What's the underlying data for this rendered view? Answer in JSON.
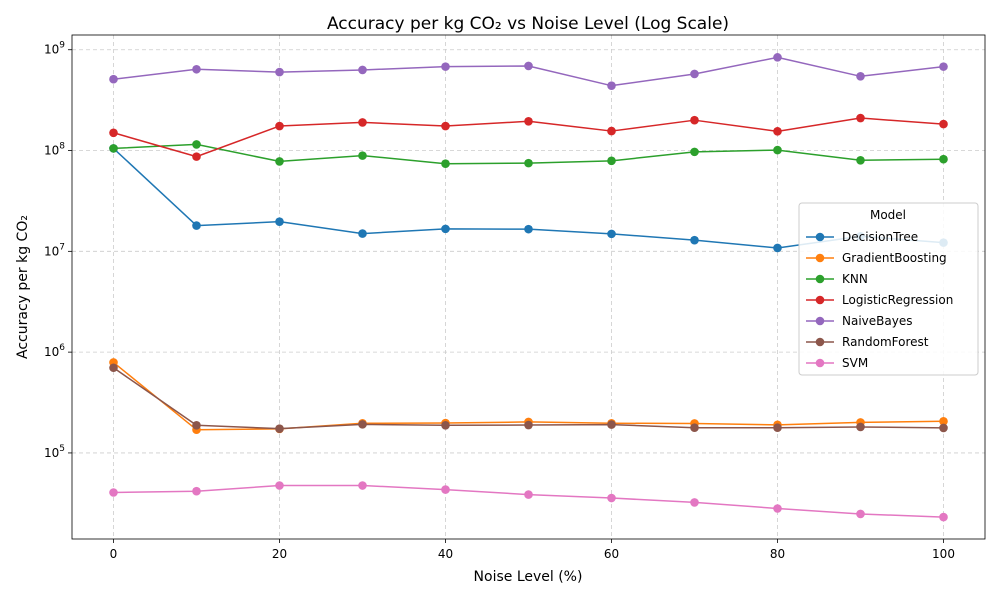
{
  "chart_data": {
    "type": "line",
    "title": "Accuracy per kg CO₂ vs Noise Level (Log Scale)",
    "xlabel": "Noise Level (%)",
    "ylabel": "Accuracy per kg CO₂",
    "x": [
      0,
      10,
      20,
      30,
      40,
      50,
      60,
      70,
      80,
      90,
      100
    ],
    "x_ticks": [
      0,
      20,
      40,
      60,
      80,
      100
    ],
    "xlim": [
      -5,
      105
    ],
    "yscale": "log",
    "ylim": [
      14000,
      1400000000
    ],
    "y_ticks": [
      {
        "value": 100000,
        "base": "10",
        "exp": "5"
      },
      {
        "value": 1000000,
        "base": "10",
        "exp": "6"
      },
      {
        "value": 10000000,
        "base": "10",
        "exp": "7"
      },
      {
        "value": 100000000,
        "base": "10",
        "exp": "8"
      },
      {
        "value": 1000000000,
        "base": "10",
        "exp": "9"
      }
    ],
    "grid": true,
    "legend": {
      "title": "Model",
      "placement": "center-right"
    },
    "series": [
      {
        "name": "DecisionTree",
        "color": "#1f77b4",
        "values": [
          105000000,
          18000000,
          19700000,
          15000000,
          16700000,
          16600000,
          14900000,
          12900000,
          10800000,
          14100000,
          12200000
        ]
      },
      {
        "name": "GradientBoosting",
        "color": "#ff7f0e",
        "values": [
          790000,
          170000,
          173000,
          197000,
          198000,
          203000,
          197000,
          196000,
          190000,
          201000,
          206000
        ]
      },
      {
        "name": "KNN",
        "color": "#2ca02c",
        "values": [
          105000000,
          115000000,
          78000000,
          89000000,
          74000000,
          75000000,
          79000000,
          97000000,
          101000000,
          80000000,
          82000000
        ]
      },
      {
        "name": "LogisticRegression",
        "color": "#d62728",
        "values": [
          150000000,
          87000000,
          175000000,
          190000000,
          175000000,
          195000000,
          156000000,
          200000000,
          155000000,
          210000000,
          183000000
        ]
      },
      {
        "name": "NaiveBayes",
        "color": "#9467bd",
        "values": [
          510000000,
          640000000,
          600000000,
          630000000,
          680000000,
          690000000,
          440000000,
          575000000,
          840000000,
          545000000,
          680000000
        ]
      },
      {
        "name": "RandomForest",
        "color": "#8c564b",
        "values": [
          700000,
          188000,
          174000,
          192000,
          188000,
          189000,
          191000,
          178000,
          178000,
          181000,
          177000
        ]
      },
      {
        "name": "SVM",
        "color": "#e377c2",
        "values": [
          40500,
          41700,
          47500,
          47500,
          43300,
          38600,
          35700,
          32300,
          28100,
          24800,
          23100
        ]
      }
    ]
  }
}
